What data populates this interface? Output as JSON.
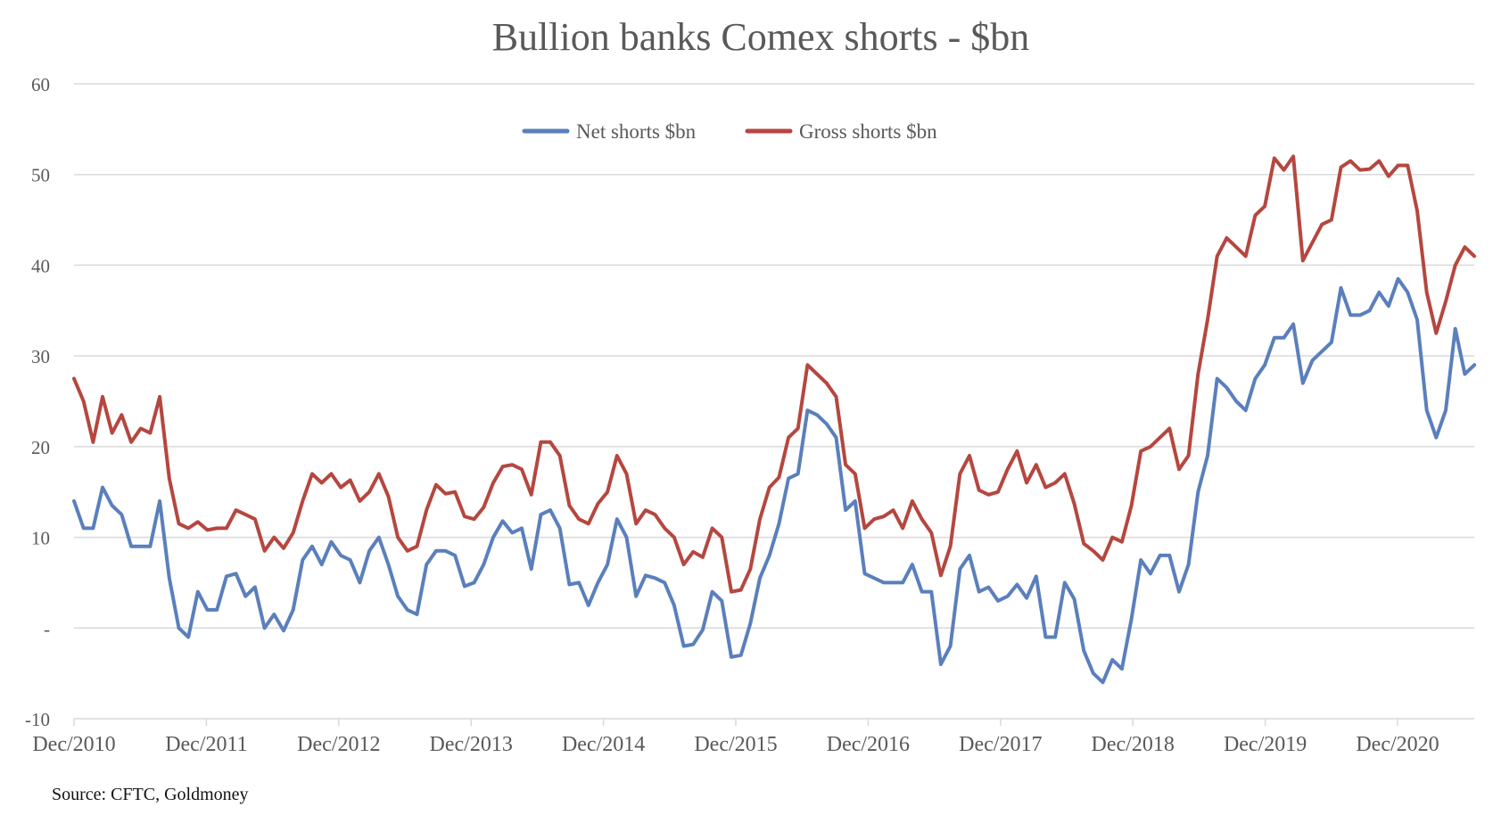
{
  "chart_data": {
    "type": "line",
    "title": "Bullion banks Comex shorts - $bn",
    "source": "Source: CFTC, Goldmoney",
    "xlabel": "",
    "ylabel": "",
    "ylim": [
      -10,
      60
    ],
    "y_ticks": [
      -10,
      0,
      10,
      20,
      30,
      40,
      50,
      60
    ],
    "y_tick_labels": [
      "-10",
      "-",
      "10",
      "20",
      "30",
      "40",
      "50",
      "60"
    ],
    "x_unit": "years since Dec/2010",
    "x_range": [
      0,
      10.58
    ],
    "x_tick_labels": [
      "Dec/2010",
      "Dec/2011",
      "Dec/2012",
      "Dec/2013",
      "Dec/2014",
      "Dec/2015",
      "Dec/2016",
      "Dec/2017",
      "Dec/2018",
      "Dec/2019",
      "Dec/2020"
    ],
    "grid": true,
    "legend_position": "top-center",
    "series": [
      {
        "name": "Net shorts $bn",
        "color": "#5a7fbc",
        "values": [
          14,
          11,
          11,
          15.5,
          13.5,
          12.5,
          9,
          9,
          9,
          14,
          5.5,
          0,
          -1,
          4,
          2,
          2,
          5.7,
          6,
          3.5,
          4.5,
          0,
          1.5,
          -0.3,
          2,
          7.5,
          9,
          7,
          9.5,
          8,
          7.5,
          5,
          8.5,
          10,
          7,
          3.5,
          2,
          1.5,
          7,
          8.5,
          8.5,
          8,
          4.6,
          5,
          7,
          10,
          11.8,
          10.5,
          11,
          6.5,
          12.5,
          13,
          11,
          4.8,
          5,
          2.5,
          5,
          7,
          12,
          10,
          3.5,
          5.8,
          5.5,
          5,
          2.5,
          -2,
          -1.8,
          -0.2,
          4,
          3,
          -3.2,
          -3,
          0.5,
          5.5,
          8,
          11.5,
          16.5,
          17,
          24,
          23.5,
          22.5,
          21,
          13,
          14,
          6,
          5.5,
          5,
          5,
          5,
          7,
          4,
          4,
          -4,
          -2,
          6.5,
          8,
          4,
          4.5,
          3,
          3.5,
          4.8,
          3.3,
          5.7,
          -1,
          -1,
          5,
          3.2,
          -2.5,
          -5,
          -6,
          -3.5,
          -4.5,
          1,
          7.5,
          6,
          8,
          8,
          4,
          7,
          15,
          19,
          27.5,
          26.5,
          25,
          24,
          27.5,
          29,
          32,
          32,
          33.5,
          27,
          29.5,
          30.5,
          31.5,
          37.5,
          34.5,
          34.5,
          35,
          37,
          35.5,
          38.5,
          37,
          34,
          24,
          21,
          24,
          33,
          28,
          29
        ]
      },
      {
        "name": "Gross shorts $bn",
        "color": "#b5473f",
        "values": [
          27.5,
          25,
          20.5,
          25.5,
          21.5,
          23.5,
          20.5,
          22,
          21.5,
          25.5,
          16.5,
          11.5,
          11,
          11.7,
          10.8,
          11,
          11,
          13,
          12.5,
          12,
          8.5,
          10,
          8.8,
          10.5,
          14,
          17,
          16,
          17,
          15.5,
          16.3,
          14,
          15,
          17,
          14.5,
          10,
          8.5,
          9,
          13,
          15.8,
          14.8,
          15,
          12.3,
          12,
          13.3,
          16,
          17.8,
          18,
          17.5,
          14.7,
          20.5,
          20.5,
          19,
          13.5,
          12,
          11.5,
          13.7,
          15,
          19,
          17,
          11.5,
          13,
          12.5,
          11,
          10,
          7,
          8.4,
          7.8,
          11,
          10,
          4,
          4.2,
          6.5,
          12,
          15.5,
          16.6,
          21,
          22,
          29,
          28,
          27,
          25.5,
          18,
          17,
          11,
          12,
          12.3,
          13,
          11,
          14,
          12,
          10.5,
          5.8,
          9,
          17,
          19,
          15.2,
          14.7,
          15,
          17.5,
          19.5,
          16,
          18,
          15.5,
          16,
          17,
          13.7,
          9.3,
          8.5,
          7.5,
          10,
          9.5,
          13.5,
          19.5,
          20,
          21,
          22,
          17.5,
          19,
          28,
          34,
          41,
          43,
          42,
          41,
          45.5,
          46.5,
          51.8,
          50.5,
          52,
          40.5,
          42.5,
          44.5,
          45,
          50.8,
          51.5,
          50.5,
          50.6,
          51.5,
          49.8,
          51,
          51,
          46,
          37,
          32.5,
          36,
          40,
          42,
          41
        ]
      }
    ]
  }
}
